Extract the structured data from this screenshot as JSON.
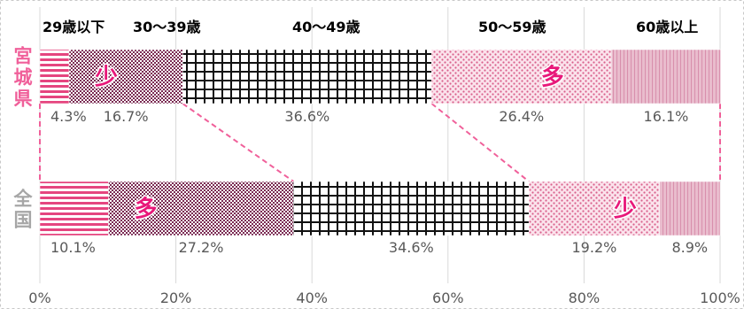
{
  "chart_data": {
    "type": "bar",
    "orientation": "horizontal-stacked-100",
    "categories": [
      "宮城県",
      "全国"
    ],
    "series": [
      {
        "name": "29歳以下",
        "values": [
          4.3,
          10.1
        ],
        "color": "#f4b6ca",
        "pattern": "horizontal-lines"
      },
      {
        "name": "30～39歳",
        "values": [
          16.7,
          27.2
        ],
        "color": "#a04a72",
        "pattern": "dense-dots"
      },
      {
        "name": "40～49歳",
        "values": [
          36.6,
          34.6
        ],
        "color": "#1a1a1a",
        "pattern": "grid"
      },
      {
        "name": "50～59歳",
        "values": [
          26.4,
          19.2
        ],
        "color": "#f6b4cc",
        "pattern": "dots"
      },
      {
        "name": "60歳以上",
        "values": [
          16.1,
          8.9
        ],
        "color": "#e7b5c9",
        "pattern": "vertical-lines"
      }
    ],
    "data_labels": [
      [
        "4.3%",
        "16.7%",
        "36.6%",
        "26.4%",
        "16.1%"
      ],
      [
        "10.1%",
        "27.2%",
        "34.6%",
        "19.2%",
        "8.9%"
      ]
    ],
    "annotations": [
      {
        "row": 0,
        "segment": 1,
        "text": "少"
      },
      {
        "row": 0,
        "segment": 3,
        "text": "多"
      },
      {
        "row": 1,
        "segment": 1,
        "text": "多"
      },
      {
        "row": 1,
        "segment": 3,
        "text": "少"
      }
    ],
    "x_ticks": [
      "0%",
      "20%",
      "40%",
      "60%",
      "80%",
      "100%"
    ],
    "xlim": [
      0,
      100
    ],
    "grid": true,
    "legend_position": "top",
    "category_colors": [
      "#f0609a",
      "#a6a6a6"
    ],
    "annotation_color": "#e8187a",
    "connector_color": "#f0609a"
  }
}
